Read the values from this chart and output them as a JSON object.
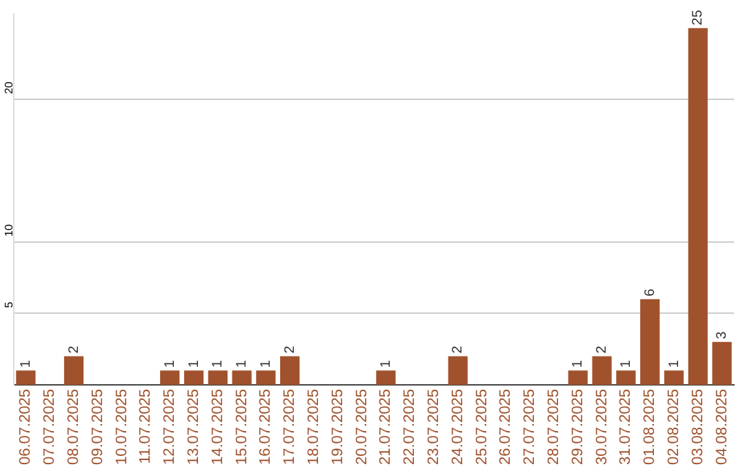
{
  "chart_data": {
    "type": "bar",
    "categories": [
      "06.07.2025",
      "07.07.2025",
      "08.07.2025",
      "09.07.2025",
      "10.07.2025",
      "11.07.2025",
      "12.07.2025",
      "13.07.2025",
      "14.07.2025",
      "15.07.2025",
      "16.07.2025",
      "17.07.2025",
      "18.07.2025",
      "19.07.2025",
      "20.07.2025",
      "21.07.2025",
      "22.07.2025",
      "23.07.2025",
      "24.07.2025",
      "25.07.2025",
      "26.07.2025",
      "27.07.2025",
      "28.07.2025",
      "29.07.2025",
      "30.07.2025",
      "31.07.2025",
      "01.08.2025",
      "02.08.2025",
      "03.08.2025",
      "04.08.2025"
    ],
    "values": [
      1,
      0,
      2,
      0,
      0,
      0,
      1,
      1,
      1,
      1,
      1,
      2,
      0,
      0,
      0,
      1,
      0,
      0,
      2,
      0,
      0,
      0,
      0,
      1,
      2,
      1,
      6,
      1,
      25,
      3
    ],
    "value_labels": [
      "1",
      null,
      "2",
      null,
      null,
      null,
      "1",
      "1",
      "1",
      "1",
      "1",
      "2",
      null,
      null,
      null,
      "1",
      null,
      null,
      "2",
      null,
      null,
      null,
      null,
      "1",
      "2",
      "1",
      "6",
      "1",
      "25",
      "3"
    ],
    "color": "#a0522d",
    "ylim": [
      0,
      26
    ],
    "yticks": [
      5,
      10,
      20
    ],
    "grid": "y",
    "legend": false
  }
}
